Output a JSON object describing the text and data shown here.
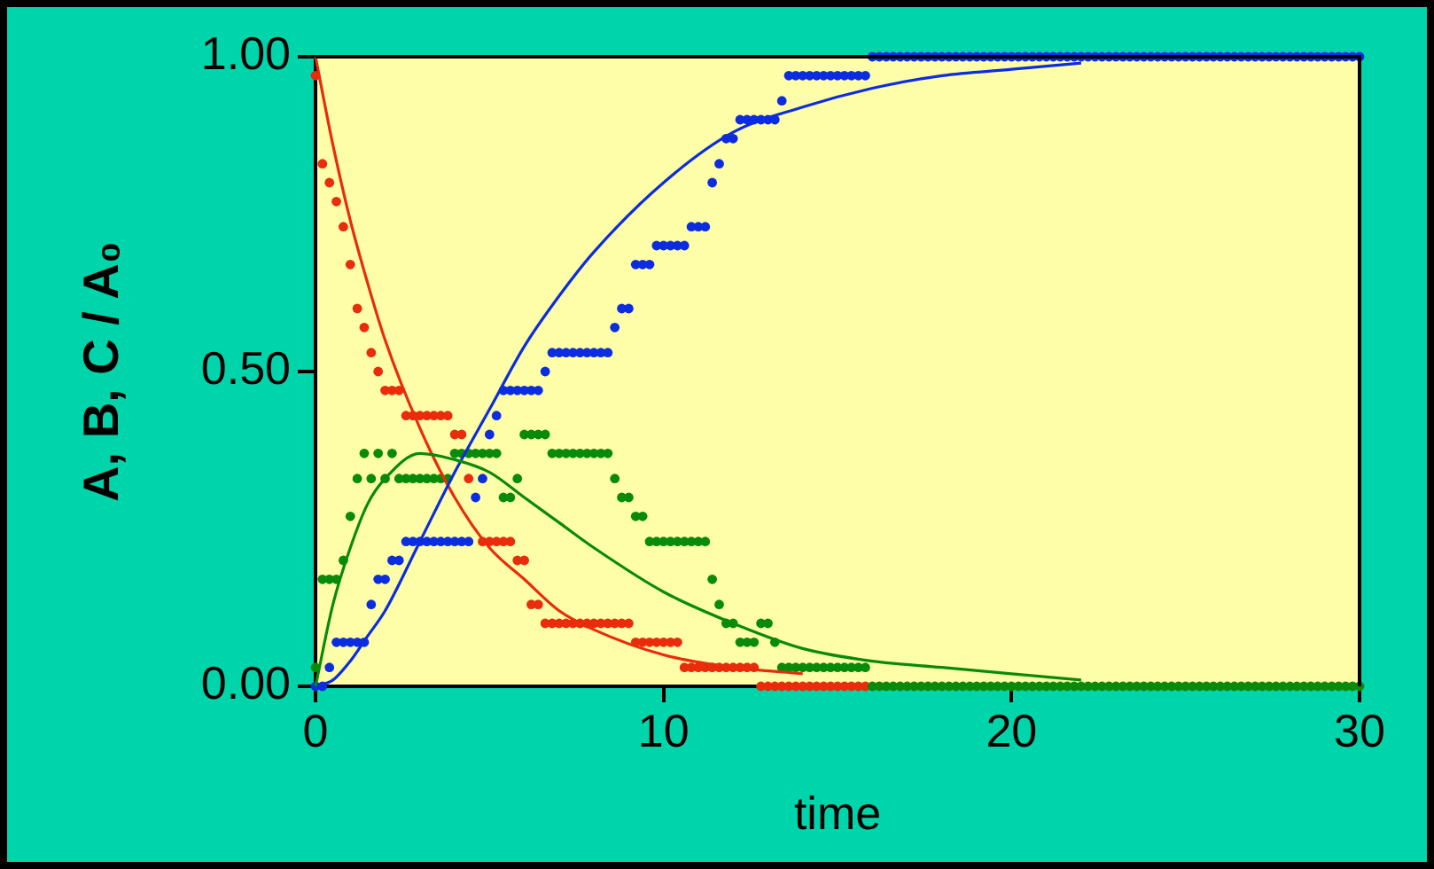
{
  "chart_data": {
    "type": "scatter",
    "xlabel": "time",
    "ylabel": "A, B, C / A₀",
    "xlim": [
      0,
      30
    ],
    "ylim": [
      0,
      1
    ],
    "xticks": [
      0,
      10,
      20,
      30
    ],
    "yticks": [
      {
        "value": 0,
        "label": "0.00"
      },
      {
        "value": 0.5,
        "label": "0.50"
      },
      {
        "value": 1,
        "label": "1.00"
      }
    ],
    "grid": false,
    "legend": false,
    "x": [
      0,
      0.2,
      0.4,
      0.6,
      0.8,
      1,
      1.2,
      1.4,
      1.6,
      1.8,
      2,
      2.2,
      2.4,
      2.6,
      2.8,
      3,
      3.2,
      3.4,
      3.6,
      3.8,
      4,
      4.2,
      4.4,
      4.6,
      4.8,
      5,
      5.2,
      5.4,
      5.6,
      5.8,
      6,
      6.2,
      6.4,
      6.6,
      6.8,
      7,
      7.2,
      7.4,
      7.6,
      7.8,
      8,
      8.2,
      8.4,
      8.6,
      8.8,
      9,
      9.2,
      9.4,
      9.6,
      9.8,
      10,
      10.2,
      10.4,
      10.6,
      10.8,
      11,
      11.2,
      11.4,
      11.6,
      11.8,
      12,
      12.2,
      12.4,
      12.6,
      12.8,
      13,
      13.2,
      13.4,
      13.6,
      13.8,
      14,
      14.2,
      14.4,
      14.6,
      14.8,
      15,
      15.2,
      15.4,
      15.6,
      15.8,
      16,
      16.2,
      16.4,
      16.6,
      16.8,
      17,
      17.2,
      17.4,
      17.6,
      17.8,
      18,
      18.2,
      18.4,
      18.6,
      18.8,
      19,
      19.2,
      19.4,
      19.6,
      19.8,
      20,
      20.2,
      20.4,
      20.6,
      20.8,
      21,
      21.2,
      21.4,
      21.6,
      21.8,
      22,
      22.2,
      22.4,
      22.6,
      22.8,
      23,
      23.2,
      23.4,
      23.6,
      23.8,
      24,
      24.2,
      24.4,
      24.6,
      24.8,
      25,
      25.2,
      25.4,
      25.6,
      25.8,
      26,
      26.2,
      26.4,
      26.6,
      26.8,
      27,
      27.2,
      27.4,
      27.6,
      27.8,
      28,
      28.2,
      28.4,
      28.6,
      28.8,
      29,
      29.2,
      29.4,
      29.6,
      29.8,
      30
    ],
    "series": [
      {
        "marker": "circle",
        "color": "#e82c0c",
        "values": [
          0.97,
          0.83,
          0.8,
          0.77,
          0.73,
          0.67,
          0.6,
          0.57,
          0.53,
          0.5,
          0.47,
          0.47,
          0.47,
          0.43,
          0.43,
          0.43,
          0.43,
          0.43,
          0.43,
          0.43,
          0.4,
          0.4,
          0.33,
          null,
          0.23,
          0.23,
          0.23,
          0.23,
          0.23,
          0.2,
          0.2,
          0.13,
          0.13,
          0.1,
          0.1,
          0.1,
          0.1,
          0.1,
          0.1,
          0.1,
          0.1,
          0.1,
          0.1,
          0.1,
          0.1,
          0.1,
          0.07,
          0.07,
          0.07,
          0.07,
          0.07,
          0.07,
          0.07,
          0.03,
          0.03,
          0.03,
          0.03,
          0.03,
          0.03,
          0.03,
          0.03,
          0.03,
          0.03,
          0.03,
          0,
          0,
          0,
          0,
          0,
          0,
          0,
          0,
          0,
          0,
          0,
          0,
          0,
          0,
          0,
          0,
          null,
          null,
          null,
          null,
          null,
          null,
          null,
          null,
          null,
          null,
          null,
          null,
          null,
          null,
          null,
          null,
          null,
          null,
          null,
          null,
          null,
          null,
          null,
          null,
          null,
          null,
          null,
          null,
          null,
          null,
          null,
          null,
          null,
          null,
          null,
          null,
          null,
          null,
          null,
          null,
          null,
          null,
          null,
          null,
          null,
          null,
          null,
          null,
          null,
          null,
          null,
          null,
          null,
          null,
          null,
          null,
          null,
          null,
          null,
          null,
          null,
          null,
          null,
          null,
          null,
          null,
          null,
          null,
          null,
          null,
          null
        ]
      },
      {
        "marker": "circle",
        "color": "#0c2ce0",
        "values": [
          0,
          0,
          0.03,
          0.07,
          0.07,
          0.07,
          0.07,
          0.07,
          0.13,
          0.17,
          0.17,
          0.2,
          0.2,
          0.23,
          0.23,
          0.23,
          0.23,
          0.23,
          0.23,
          0.23,
          0.23,
          0.23,
          0.23,
          0.3,
          0.33,
          0.4,
          0.43,
          0.47,
          0.47,
          0.47,
          0.47,
          0.47,
          0.47,
          0.5,
          0.53,
          0.53,
          0.53,
          0.53,
          0.53,
          0.53,
          0.53,
          0.53,
          0.53,
          0.57,
          0.6,
          0.6,
          0.67,
          0.67,
          0.67,
          0.7,
          0.7,
          0.7,
          0.7,
          0.7,
          0.73,
          0.73,
          0.73,
          0.8,
          0.83,
          0.87,
          0.87,
          0.9,
          0.9,
          0.9,
          0.9,
          0.9,
          0.9,
          0.93,
          0.97,
          0.97,
          0.97,
          0.97,
          0.97,
          0.97,
          0.97,
          0.97,
          0.97,
          0.97,
          0.97,
          0.97,
          1,
          1,
          1,
          1,
          1,
          1,
          1,
          1,
          1,
          1,
          1,
          1,
          1,
          1,
          1,
          1,
          1,
          1,
          1,
          1,
          1,
          1,
          1,
          1,
          1,
          1,
          1,
          1,
          1,
          1,
          1,
          1,
          1,
          1,
          1,
          1,
          1,
          1,
          1,
          1,
          1,
          1,
          1,
          1,
          1,
          1,
          1,
          1,
          1,
          1,
          1,
          1,
          1,
          1,
          1,
          1,
          1,
          1,
          1,
          1,
          1,
          1,
          1,
          1,
          1,
          1,
          1,
          1,
          1,
          1,
          1
        ]
      },
      {
        "marker": "circle",
        "color": "#0a8a0a",
        "values": [
          0.03,
          0.17,
          0.17,
          0.17,
          0.2,
          0.27,
          0.33,
          0.37,
          0.33,
          0.37,
          0.33,
          0.37,
          0.33,
          0.33,
          0.33,
          0.33,
          0.33,
          0.33,
          0.33,
          0.33,
          0.37,
          0.37,
          0.37,
          0.37,
          0.37,
          0.37,
          0.37,
          0.3,
          0.3,
          0.33,
          0.4,
          0.4,
          0.4,
          0.4,
          0.37,
          0.37,
          0.37,
          0.37,
          0.37,
          0.37,
          0.37,
          0.37,
          0.37,
          0.33,
          0.3,
          0.3,
          0.27,
          0.27,
          0.23,
          0.23,
          0.23,
          0.23,
          0.23,
          0.23,
          0.23,
          0.23,
          0.23,
          0.17,
          0.13,
          0.1,
          0.1,
          0.07,
          0.07,
          0.07,
          0.1,
          0.1,
          0.07,
          0.03,
          0.03,
          0.03,
          0.03,
          0.03,
          0.03,
          0.03,
          0.03,
          0.03,
          0.03,
          0.03,
          0.03,
          0.03,
          0,
          0,
          0,
          0,
          0,
          0,
          0,
          0,
          0,
          0,
          0,
          0,
          0,
          0,
          0,
          0,
          0,
          0,
          0,
          0,
          0,
          0,
          0,
          0,
          0,
          0,
          0,
          0,
          0,
          0,
          0,
          0,
          0,
          0,
          0,
          0,
          0,
          0,
          0,
          0,
          0,
          0,
          0,
          0,
          0,
          0,
          0,
          0,
          0,
          0,
          0,
          0,
          0,
          0,
          0,
          0,
          0,
          0,
          0,
          0,
          0,
          0,
          0,
          0,
          0,
          0,
          0,
          0,
          0,
          0,
          0
        ]
      },
      {
        "type": "line",
        "marker": "none",
        "color": "#e82c0c",
        "x": [
          0,
          0.5,
          1,
          1.5,
          2,
          3,
          4,
          5,
          6,
          7,
          8,
          10,
          12,
          14
        ],
        "values": [
          1,
          0.86,
          0.74,
          0.64,
          0.55,
          0.41,
          0.3,
          0.22,
          0.17,
          0.12,
          0.09,
          0.05,
          0.03,
          0.02
        ]
      },
      {
        "type": "line",
        "marker": "none",
        "color": "#0c2ce0",
        "x": [
          0,
          0.5,
          1,
          1.5,
          2,
          3,
          4,
          5,
          6,
          7,
          8,
          10,
          12,
          14,
          16,
          18,
          20,
          22
        ],
        "values": [
          0,
          0.01,
          0.04,
          0.08,
          0.12,
          0.23,
          0.34,
          0.44,
          0.54,
          0.62,
          0.69,
          0.8,
          0.88,
          0.92,
          0.95,
          0.97,
          0.98,
          0.99
        ]
      },
      {
        "type": "line",
        "marker": "none",
        "color": "#0a8a0a",
        "x": [
          0,
          0.5,
          1,
          1.5,
          2,
          3,
          4,
          5,
          6,
          7,
          8,
          10,
          12,
          14,
          16,
          18,
          20,
          22
        ],
        "values": [
          0,
          0.13,
          0.22,
          0.29,
          0.33,
          0.37,
          0.36,
          0.34,
          0.3,
          0.26,
          0.22,
          0.15,
          0.1,
          0.06,
          0.04,
          0.03,
          0.02,
          0.01
        ]
      }
    ]
  }
}
